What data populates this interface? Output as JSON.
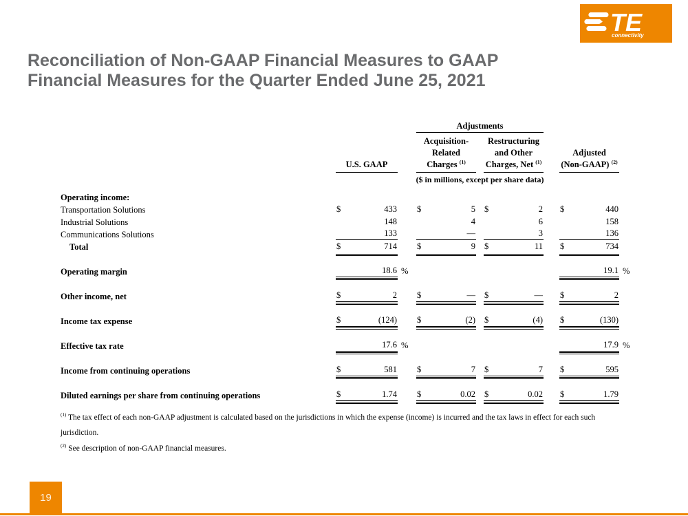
{
  "accent_color": "#EE8600",
  "title_color": "#6A6B6D",
  "logo": {
    "brand": "TE",
    "tagline": "connectivity"
  },
  "title": {
    "line1": "Reconciliation of Non-GAAP Financial Measures to GAAP",
    "line2": "Financial Measures for the Quarter Ended June 25, 2021"
  },
  "table": {
    "adjustments_label": "Adjustments",
    "units_note": "($ in millions, except per share data)",
    "columns": [
      {
        "lines": [
          "U.S. GAAP"
        ],
        "sup": ""
      },
      {
        "lines": [
          "Acquisition-",
          "Related",
          "Charges"
        ],
        "sup": "(1)"
      },
      {
        "lines": [
          "Restructuring",
          "and Other",
          "Charges, Net"
        ],
        "sup": "(1)"
      },
      {
        "lines": [
          "Adjusted",
          "(Non-GAAP)"
        ],
        "sup": "(2)"
      }
    ],
    "rows": [
      {
        "label": "Operating income:",
        "bold": true,
        "indent": false,
        "type": "section",
        "gap_before": false,
        "cells": [
          null,
          null,
          null,
          null
        ]
      },
      {
        "label": "Transportation Solutions",
        "bold": false,
        "indent": false,
        "type": "plain",
        "gap_before": false,
        "cells": [
          {
            "d": "$",
            "v": "433"
          },
          {
            "d": "$",
            "v": "5"
          },
          {
            "d": "$",
            "v": "2"
          },
          {
            "d": "$",
            "v": "440"
          }
        ]
      },
      {
        "label": "Industrial Solutions",
        "bold": false,
        "indent": false,
        "type": "plain",
        "gap_before": false,
        "cells": [
          {
            "d": "",
            "v": "148"
          },
          {
            "d": "",
            "v": "4"
          },
          {
            "d": "",
            "v": "6"
          },
          {
            "d": "",
            "v": "158"
          }
        ]
      },
      {
        "label": "Communications Solutions",
        "bold": false,
        "indent": false,
        "type": "single",
        "gap_before": false,
        "cells": [
          {
            "d": "",
            "v": "133"
          },
          {
            "d": "",
            "v": "—"
          },
          {
            "d": "",
            "v": "3"
          },
          {
            "d": "",
            "v": "136"
          }
        ]
      },
      {
        "label": "Total",
        "bold": true,
        "indent": true,
        "type": "total",
        "gap_before": false,
        "cells": [
          {
            "d": "$",
            "v": "714"
          },
          {
            "d": "$",
            "v": "9"
          },
          {
            "d": "$",
            "v": "11"
          },
          {
            "d": "$",
            "v": "734"
          }
        ]
      },
      {
        "label": "Operating margin",
        "bold": true,
        "indent": false,
        "type": "standalone",
        "gap_before": true,
        "cells": [
          {
            "d": "",
            "v": "18.6",
            "pct": "%"
          },
          null,
          null,
          {
            "d": "",
            "v": "19.1",
            "pct": "%"
          }
        ]
      },
      {
        "label": "Other income, net",
        "bold": true,
        "indent": false,
        "type": "standalone",
        "gap_before": true,
        "cells": [
          {
            "d": "$",
            "v": "2"
          },
          {
            "d": "$",
            "v": "—"
          },
          {
            "d": "$",
            "v": "—"
          },
          {
            "d": "$",
            "v": "2"
          }
        ]
      },
      {
        "label": "Income tax expense",
        "bold": true,
        "indent": false,
        "type": "standalone",
        "gap_before": true,
        "cells": [
          {
            "d": "$",
            "v": "(124)"
          },
          {
            "d": "$",
            "v": "(2)"
          },
          {
            "d": "$",
            "v": "(4)"
          },
          {
            "d": "$",
            "v": "(130)"
          }
        ]
      },
      {
        "label": "Effective tax rate",
        "bold": true,
        "indent": false,
        "type": "standalone",
        "gap_before": true,
        "cells": [
          {
            "d": "",
            "v": "17.6",
            "pct": "%"
          },
          null,
          null,
          {
            "d": "",
            "v": "17.9",
            "pct": "%"
          }
        ]
      },
      {
        "label": "Income from continuing operations",
        "bold": true,
        "indent": false,
        "type": "standalone",
        "gap_before": true,
        "cells": [
          {
            "d": "$",
            "v": "581"
          },
          {
            "d": "$",
            "v": "7"
          },
          {
            "d": "$",
            "v": "7"
          },
          {
            "d": "$",
            "v": "595"
          }
        ]
      },
      {
        "label": "Diluted earnings per share from continuing operations",
        "bold": true,
        "indent": false,
        "type": "standalone",
        "gap_before": true,
        "cells": [
          {
            "d": "$",
            "v": "1.74"
          },
          {
            "d": "$",
            "v": "0.02"
          },
          {
            "d": "$",
            "v": "0.02"
          },
          {
            "d": "$",
            "v": "1.79"
          }
        ]
      }
    ]
  },
  "footnotes": [
    {
      "sup": "(1)",
      "text": "The tax effect of each non-GAAP adjustment is calculated based on the jurisdictions in which the expense (income) is incurred and the tax laws in effect for each such jurisdiction."
    },
    {
      "sup": "(2)",
      "text": "See description of non-GAAP financial measures."
    }
  ],
  "page": {
    "number": "19"
  }
}
